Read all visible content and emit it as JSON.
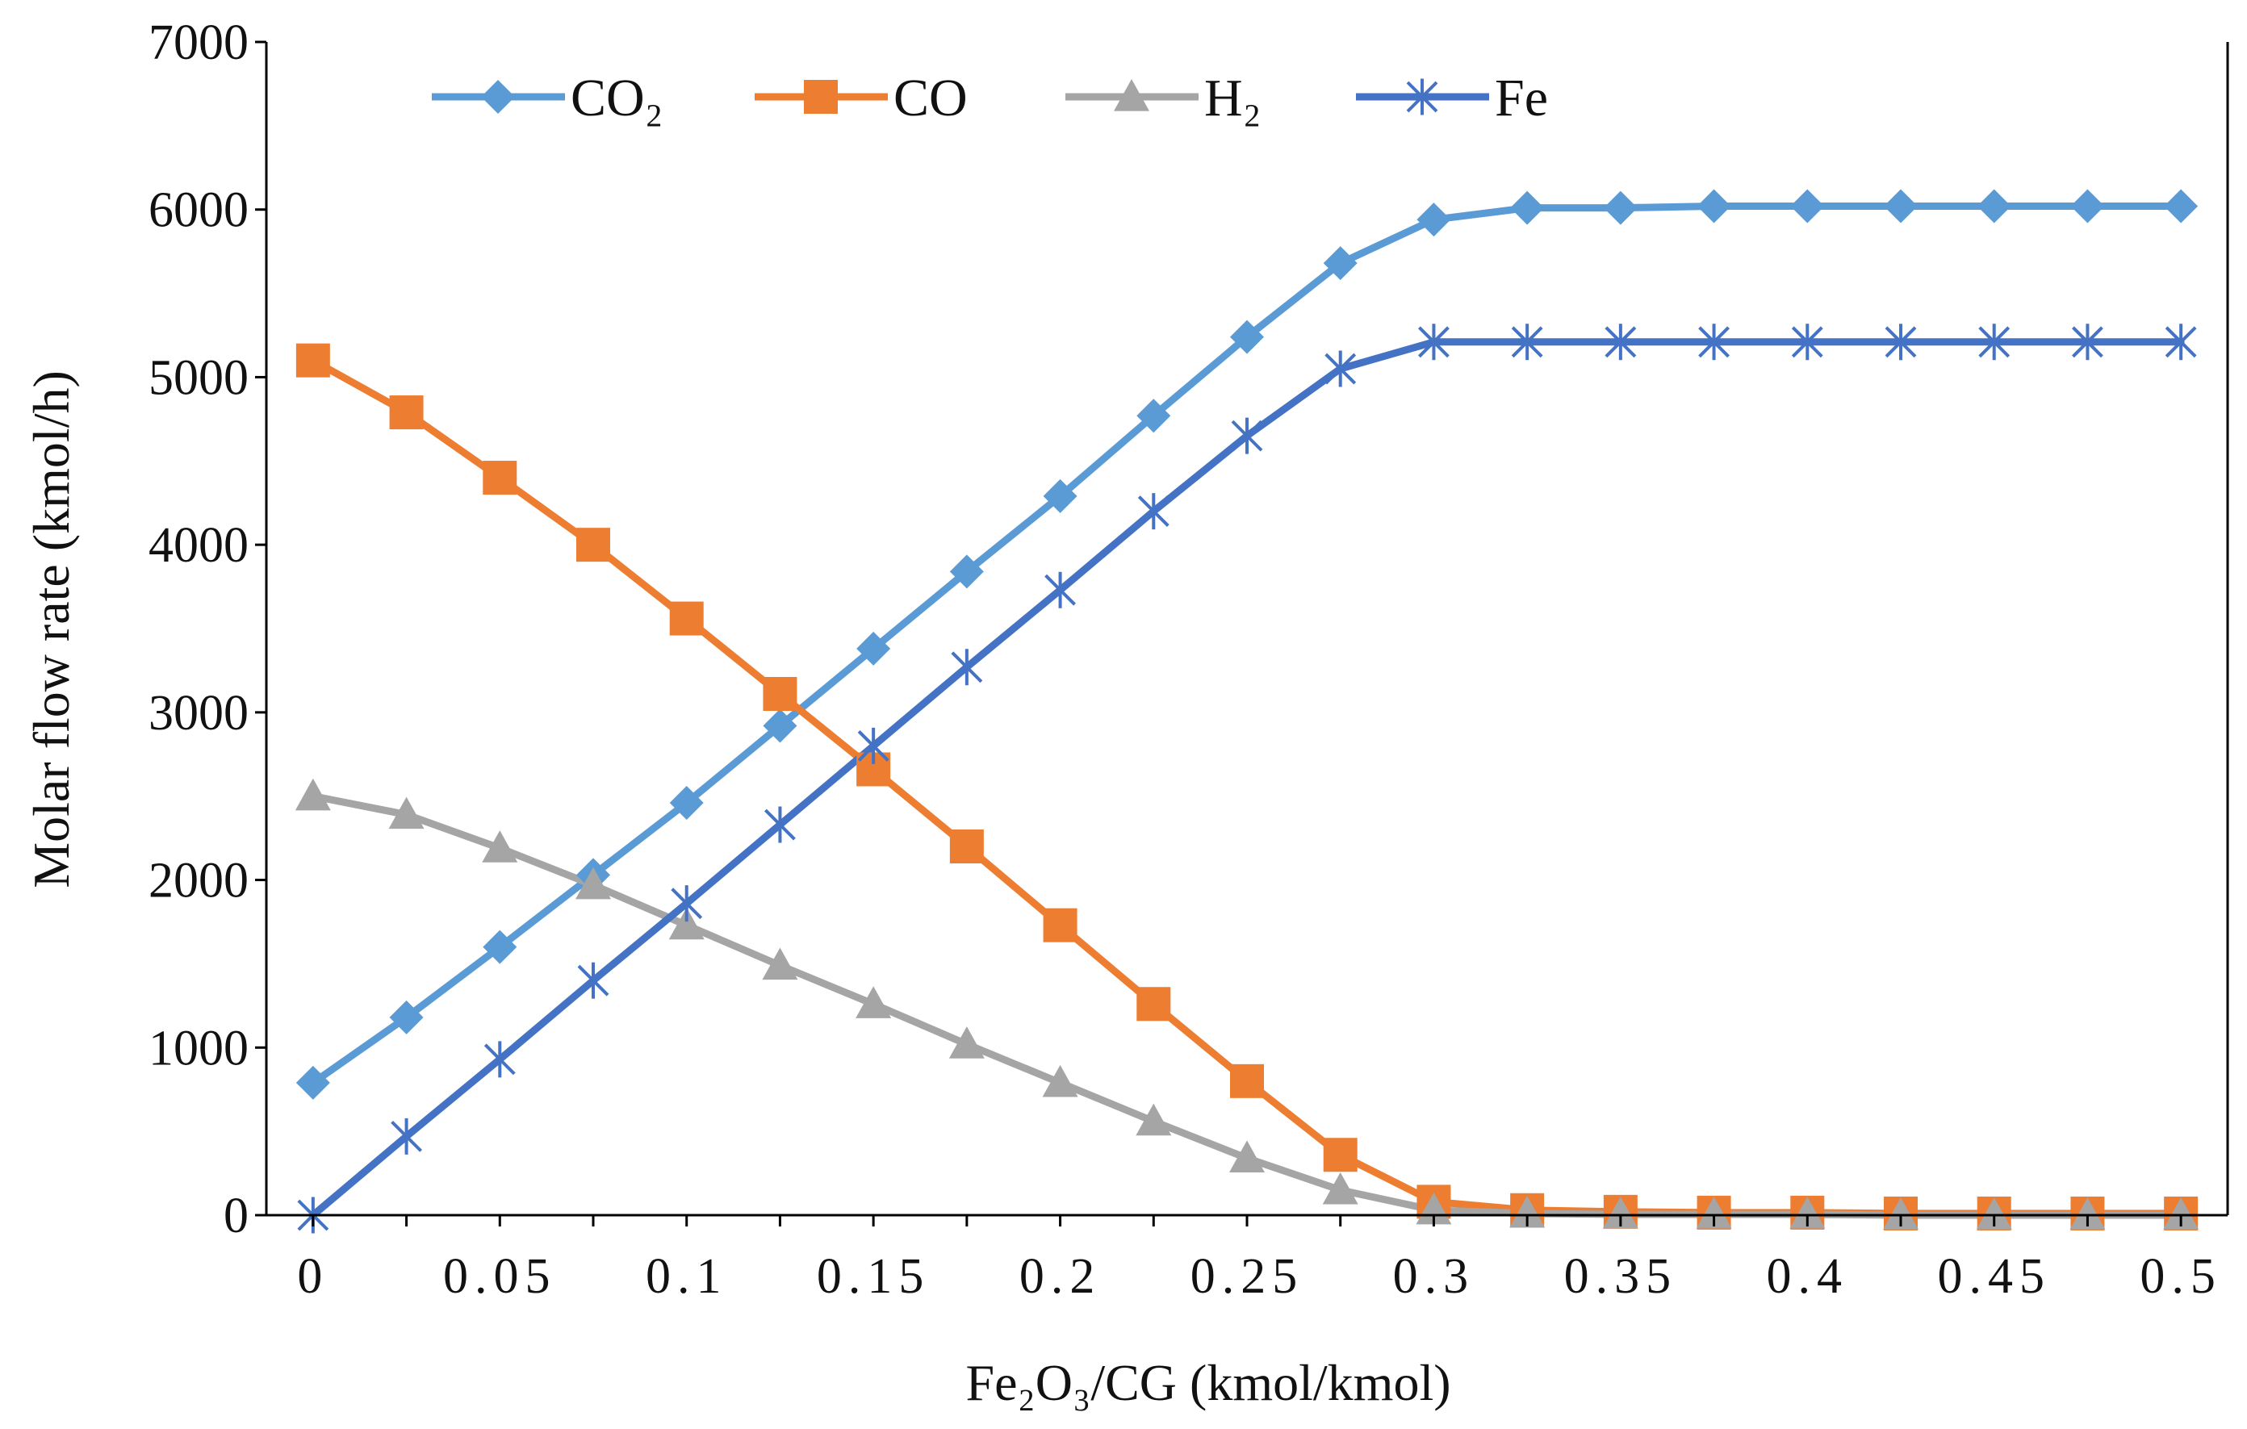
{
  "chart_data": {
    "type": "line",
    "title": "",
    "xlabel": "Fe₂O₃/CG (kmol/kmol)",
    "ylabel": "Molar flow rate (kmol/h)",
    "xlim": [
      -0.0125,
      0.5125
    ],
    "ylim": [
      0,
      7000
    ],
    "grid": false,
    "legend_position": "top",
    "x": [
      0,
      0.025,
      0.05,
      0.075,
      0.1,
      0.125,
      0.15,
      0.175,
      0.2,
      0.225,
      0.25,
      0.275,
      0.3,
      0.325,
      0.35,
      0.375,
      0.4,
      0.425,
      0.45,
      0.475,
      0.5
    ],
    "x_tick_values": [
      0,
      0.05,
      0.1,
      0.15,
      0.2,
      0.25,
      0.3,
      0.35,
      0.4,
      0.45,
      0.5
    ],
    "x_tick_labels": [
      "0",
      "0.05",
      "0.1",
      "0.15",
      "0.2",
      "0.25",
      "0.3",
      "0.35",
      "0.4",
      "0.45",
      "0.5"
    ],
    "y_tick_values": [
      0,
      1000,
      2000,
      3000,
      4000,
      5000,
      6000,
      7000
    ],
    "y_tick_labels": [
      "0",
      "1000",
      "2000",
      "3000",
      "4000",
      "5000",
      "6000",
      "7000"
    ],
    "series": [
      {
        "name": "CO₂",
        "color": "#5B9BD5",
        "marker": "diamond",
        "values": [
          790,
          1180,
          1600,
          2030,
          2460,
          2920,
          3380,
          3840,
          4290,
          4770,
          5240,
          5680,
          5940,
          6010,
          6010,
          6020,
          6020,
          6020,
          6020,
          6020,
          6020
        ]
      },
      {
        "name": "CO",
        "color": "#ED7D31",
        "marker": "square",
        "values": [
          5100,
          4790,
          4400,
          4000,
          3560,
          3110,
          2660,
          2200,
          1730,
          1260,
          800,
          360,
          80,
          30,
          20,
          15,
          15,
          10,
          10,
          10,
          10
        ]
      },
      {
        "name": "H₂",
        "color": "#A5A5A5",
        "marker": "triangle",
        "values": [
          2500,
          2390,
          2190,
          1970,
          1730,
          1490,
          1260,
          1020,
          790,
          560,
          340,
          150,
          30,
          10,
          5,
          5,
          5,
          0,
          0,
          0,
          0
        ]
      },
      {
        "name": "Fe",
        "color": "#4472C4",
        "marker": "asterisk",
        "values": [
          0,
          470,
          930,
          1400,
          1860,
          2330,
          2800,
          3270,
          3730,
          4200,
          4650,
          5050,
          5210,
          5210,
          5210,
          5210,
          5210,
          5210,
          5210,
          5210,
          5210
        ]
      }
    ]
  }
}
